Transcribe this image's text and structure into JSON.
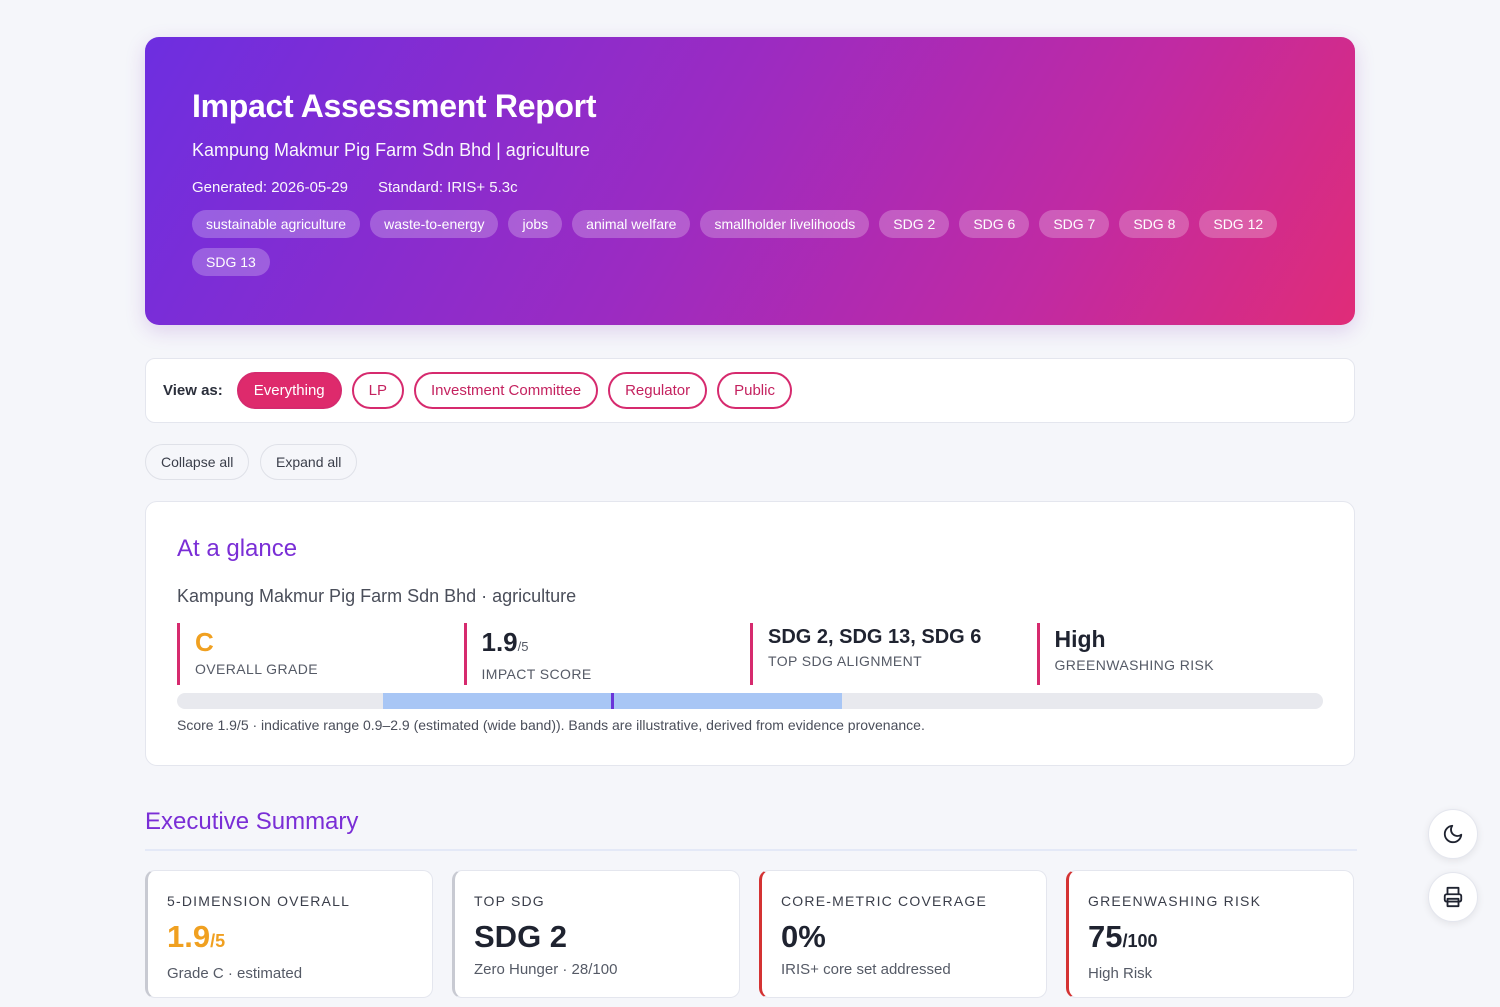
{
  "header": {
    "title": "Impact Assessment Report",
    "subtitle": "Kampung Makmur Pig Farm Sdn Bhd | agriculture",
    "generated": "Generated: 2026-05-29",
    "standard": "Standard: IRIS+ 5.3c",
    "tags": [
      "sustainable agriculture",
      "waste-to-energy",
      "jobs",
      "animal welfare",
      "smallholder livelihoods",
      "SDG 2",
      "SDG 6",
      "SDG 7",
      "SDG 8",
      "SDG 12",
      "SDG 13"
    ]
  },
  "view_bar": {
    "label": "View as:",
    "options": [
      "Everything",
      "LP",
      "Investment Committee",
      "Regulator",
      "Public"
    ],
    "selected": "Everything"
  },
  "controls": {
    "collapse_all": "Collapse all",
    "expand_all": "Expand all"
  },
  "at_a_glance": {
    "title": "At a glance",
    "entity": "Kampung Makmur Pig Farm Sdn Bhd · agriculture",
    "grade": {
      "value": "C",
      "caption": "OVERALL GRADE"
    },
    "impact_score": {
      "value": "1.9",
      "suffix": "/5",
      "caption": "IMPACT SCORE"
    },
    "top_sdg": {
      "value": "SDG 2, SDG 13, SDG 6",
      "caption": "TOP SDG ALIGNMENT"
    },
    "greenwashing": {
      "value": "High",
      "caption": "GREENWASHING RISK"
    },
    "band": {
      "score": 1.9,
      "low": 0.9,
      "high": 2.9,
      "min": 0,
      "max": 5
    },
    "note": "Score 1.9/5 · indicative range 0.9–2.9 (estimated (wide band)). Bands are illustrative, derived from evidence provenance."
  },
  "executive_summary": {
    "title": "Executive Summary",
    "cards": [
      {
        "key": "5-DIMENSION OVERALL",
        "value": "1.9",
        "suffix": "/5",
        "sub": "Grade C · estimated"
      },
      {
        "key": "TOP SDG",
        "value": "SDG 2",
        "suffix": "",
        "sub": "Zero Hunger · 28/100"
      },
      {
        "key": "CORE-METRIC COVERAGE",
        "value": "0%",
        "suffix": "",
        "sub": "IRIS+ core set addressed"
      },
      {
        "key": "GREENWASHING RISK",
        "value": "75",
        "suffix": "/100",
        "sub": "High Risk"
      }
    ]
  },
  "fabs": {
    "theme_icon": "moon-icon",
    "print_icon": "printer-icon"
  },
  "colors": {
    "accent": "#de2a6c",
    "heading": "#7a2ed6",
    "grade": "#f0a020",
    "risk": "#d43333"
  }
}
